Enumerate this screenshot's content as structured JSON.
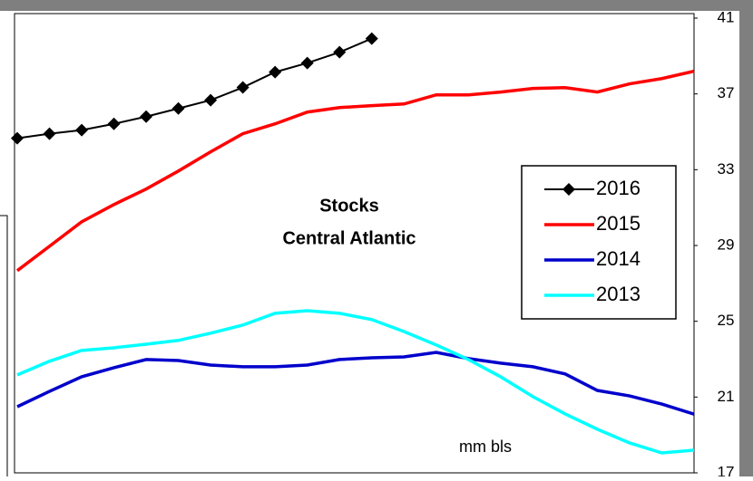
{
  "chart_data": {
    "type": "line",
    "title": "Stocks",
    "subtitle": "Central Atlantic",
    "annotation": "mm bls",
    "categories": [
      null,
      null,
      null,
      null,
      null,
      null,
      null,
      null,
      null,
      null,
      null,
      null,
      null,
      null,
      null,
      null,
      null,
      null,
      null,
      null,
      null,
      null
    ],
    "series": [
      {
        "name": "2016",
        "color": "#000000",
        "marker": "diamond",
        "values": [
          34.66,
          34.9,
          35.09,
          35.42,
          35.8,
          36.23,
          36.67,
          37.34,
          38.15,
          38.63,
          39.2,
          39.92,
          null,
          null,
          null,
          null,
          null,
          null,
          null,
          null,
          null,
          null
        ]
      },
      {
        "name": "2015",
        "color": "#ff0000",
        "values": [
          27.67,
          28.96,
          30.25,
          31.16,
          31.98,
          32.93,
          33.94,
          34.9,
          35.42,
          36.04,
          36.28,
          36.38,
          36.47,
          36.95,
          36.95,
          37.1,
          37.29,
          37.33,
          37.1,
          37.53,
          37.81,
          38.2
        ]
      },
      {
        "name": "2014",
        "color": "#0000cc",
        "values": [
          20.49,
          21.3,
          22.07,
          22.55,
          22.98,
          22.93,
          22.69,
          22.6,
          22.6,
          22.69,
          22.98,
          23.07,
          23.12,
          23.36,
          23.03,
          22.79,
          22.6,
          22.22,
          21.35,
          21.06,
          20.63,
          20.1
        ]
      },
      {
        "name": "2013",
        "color": "#00ffff",
        "values": [
          22.17,
          22.89,
          23.46,
          23.6,
          23.79,
          23.99,
          24.37,
          24.8,
          25.42,
          25.56,
          25.42,
          25.09,
          24.46,
          23.75,
          22.98,
          22.07,
          21.02,
          20.11,
          19.3,
          18.58,
          18.05,
          18.2
        ]
      }
    ],
    "ylim": [
      17,
      41
    ],
    "yticks": [
      17,
      21,
      25,
      29,
      33,
      37,
      41
    ],
    "y_axis_side": "right",
    "grid": false
  }
}
